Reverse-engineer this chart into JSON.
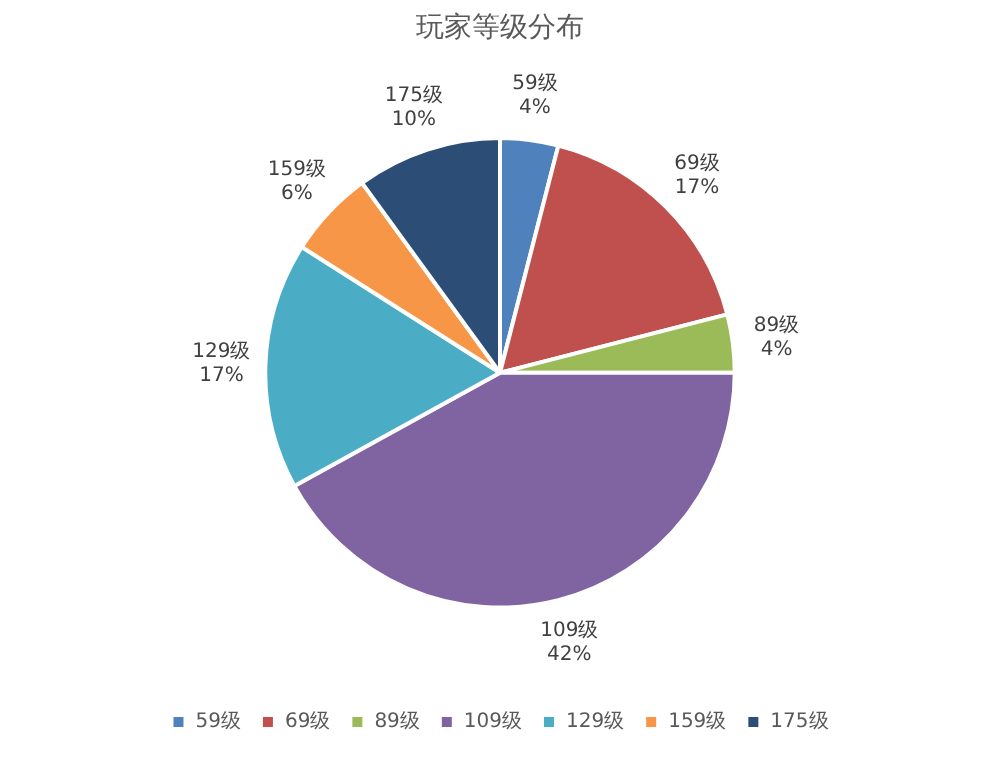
{
  "chart_data": {
    "type": "pie",
    "title": "玩家等级分布",
    "categories": [
      "59级",
      "69级",
      "89级",
      "109级",
      "129级",
      "159级",
      "175级"
    ],
    "values": [
      4,
      17,
      4,
      42,
      17,
      6,
      10
    ],
    "value_labels": [
      "4%",
      "17%",
      "4%",
      "42%",
      "17%",
      "6%",
      "10%"
    ],
    "colors": [
      "#4f81bd",
      "#c0504d",
      "#9bbb59",
      "#8064a2",
      "#4bacc6",
      "#f79646",
      "#2c4d75"
    ],
    "legend": "bottom"
  }
}
